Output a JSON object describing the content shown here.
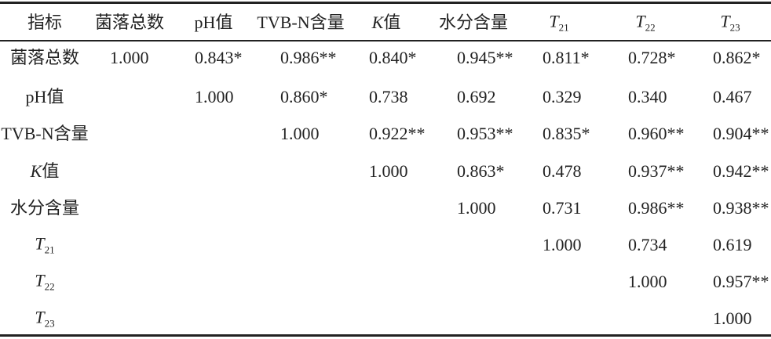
{
  "table": {
    "header": [
      {
        "text": "指标"
      },
      {
        "text": "菌落总数"
      },
      {
        "text": "pH值"
      },
      {
        "text": "TVB-N含量"
      },
      {
        "symbol": "K",
        "text": "值"
      },
      {
        "text": "水分含量"
      },
      {
        "symbol": "T",
        "sub": "21"
      },
      {
        "symbol": "T",
        "sub": "22"
      },
      {
        "symbol": "T",
        "sub": "23"
      }
    ],
    "rows": [
      {
        "label": {
          "text": "菌落总数"
        },
        "cells": [
          "1.000",
          "0.843*",
          "0.986**",
          "0.840*",
          "0.945**",
          "0.811*",
          "0.728*",
          "0.862*"
        ]
      },
      {
        "label": {
          "text": "pH值"
        },
        "cells": [
          "1.000",
          "0.860*",
          "0.738",
          "0.692",
          "0.329",
          "0.340",
          "0.467"
        ]
      },
      {
        "label": {
          "text": "TVB-N含量"
        },
        "cells": [
          "1.000",
          "0.922**",
          "0.953**",
          "0.835*",
          "0.960**",
          "0.904**"
        ]
      },
      {
        "label": {
          "symbol": "K",
          "text": "值"
        },
        "cells": [
          "1.000",
          "0.863*",
          "0.478",
          "0.937**",
          "0.942**"
        ]
      },
      {
        "label": {
          "text": "水分含量"
        },
        "cells": [
          "1.000",
          "0.731",
          "0.986**",
          "0.938**"
        ]
      },
      {
        "label": {
          "symbol": "T",
          "sub": "21"
        },
        "cells": [
          "1.000",
          "0.734",
          "0.619"
        ]
      },
      {
        "label": {
          "symbol": "T",
          "sub": "22"
        },
        "cells": [
          "1.000",
          "0.957**"
        ]
      },
      {
        "label": {
          "symbol": "T",
          "sub": "23"
        },
        "cells": [
          "1.000"
        ]
      }
    ]
  }
}
